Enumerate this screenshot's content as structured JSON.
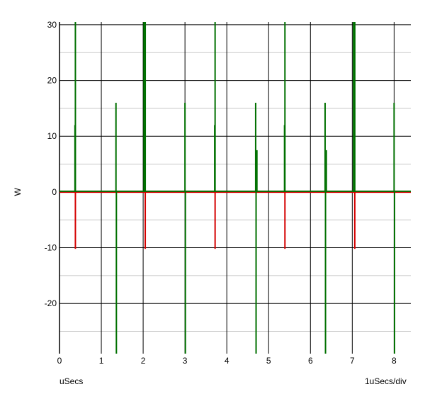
{
  "chart_data": {
    "type": "line",
    "xlabel": "uSecs",
    "ylabel": "W",
    "scale_label": "1uSecs/div",
    "xlim": [
      0,
      8.4
    ],
    "ylim": [
      -29,
      30.5
    ],
    "x_ticks": [
      0,
      1,
      2,
      3,
      4,
      5,
      6,
      7,
      8
    ],
    "y_ticks": [
      30,
      20,
      10,
      0,
      -10,
      -20
    ],
    "y_minor": [
      25,
      15,
      5,
      -5,
      -15,
      -25
    ],
    "grid": true,
    "series": [
      {
        "color": "#d40000",
        "spikes": [
          {
            "x": 0.38,
            "y": -10.2
          },
          {
            "x": 2.05,
            "y": -10.2
          },
          {
            "x": 3.72,
            "y": -10.2
          },
          {
            "x": 5.39,
            "y": -10.2
          },
          {
            "x": 7.06,
            "y": -10.2
          }
        ]
      },
      {
        "color": "#007000",
        "spikes": [
          {
            "x": 0.38,
            "y": 30.5
          },
          {
            "x": 0.37,
            "y": 12
          },
          {
            "x": 1.35,
            "y": 16
          },
          {
            "x": 1.36,
            "y": -29
          },
          {
            "x": 2.02,
            "y": 30.5
          },
          {
            "x": 2.05,
            "y": 30.5
          },
          {
            "x": 2.04,
            "y": 12
          },
          {
            "x": 3.0,
            "y": 16
          },
          {
            "x": 3.01,
            "y": -29
          },
          {
            "x": 3.72,
            "y": 30.5
          },
          {
            "x": 3.71,
            "y": 12
          },
          {
            "x": 4.69,
            "y": 16
          },
          {
            "x": 4.7,
            "y": -29
          },
          {
            "x": 4.72,
            "y": 7.5
          },
          {
            "x": 5.39,
            "y": 30.5
          },
          {
            "x": 5.38,
            "y": 12
          },
          {
            "x": 6.35,
            "y": 16
          },
          {
            "x": 6.36,
            "y": -29
          },
          {
            "x": 6.38,
            "y": 7.5
          },
          {
            "x": 7.03,
            "y": 30.5
          },
          {
            "x": 7.06,
            "y": 30.5
          },
          {
            "x": 7.05,
            "y": 12
          },
          {
            "x": 8.0,
            "y": 16
          },
          {
            "x": 8.01,
            "y": -29
          }
        ]
      }
    ]
  }
}
